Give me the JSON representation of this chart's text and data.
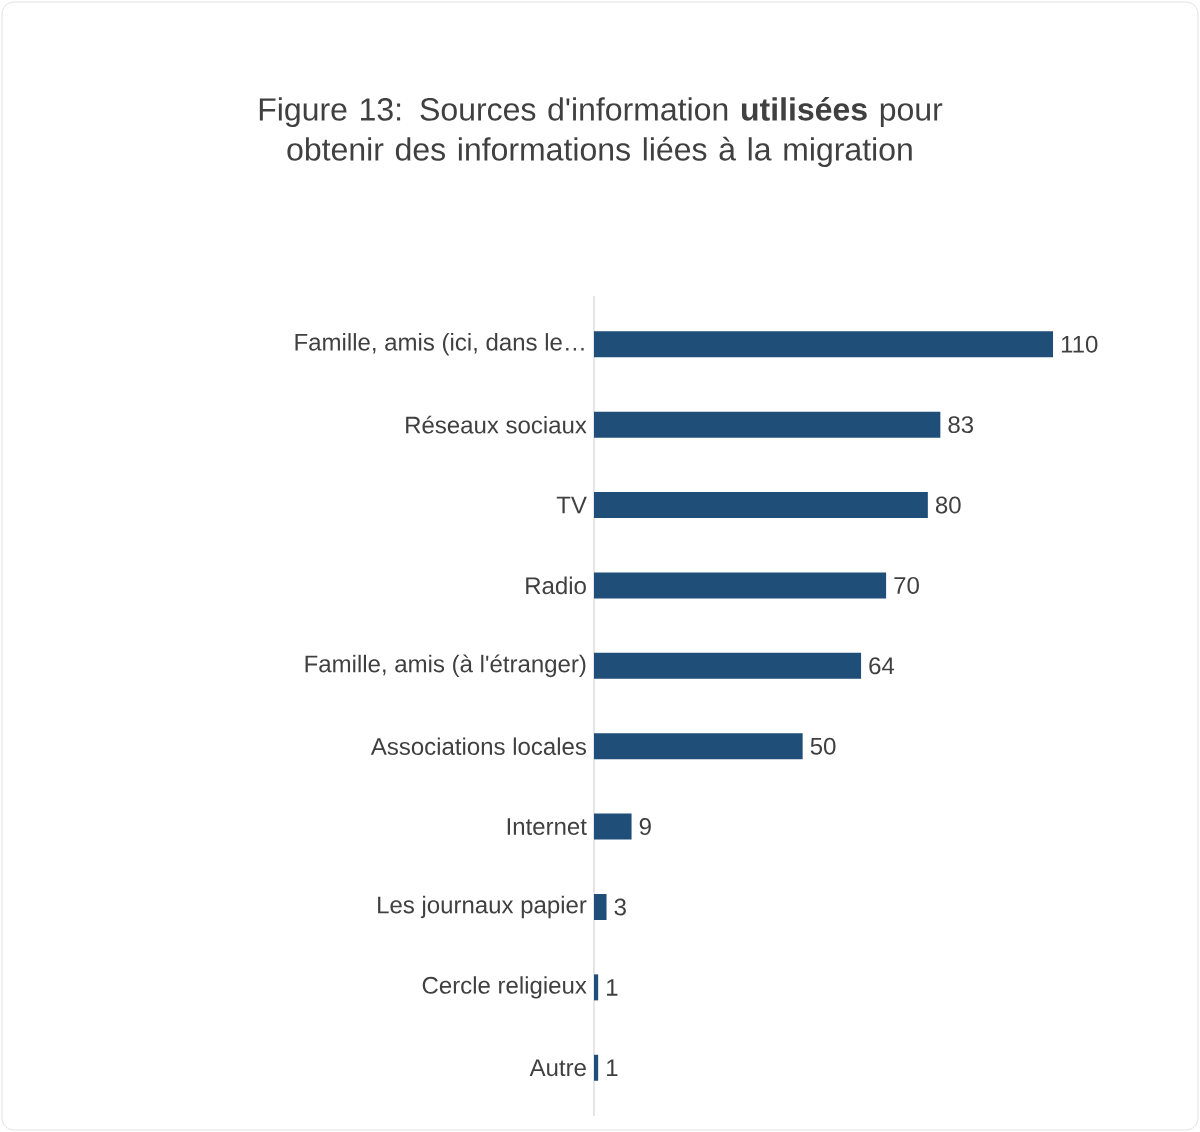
{
  "chart_data": {
    "type": "bar",
    "orientation": "horizontal",
    "title": "Figure 13: Sources d'information **utilisées** pour obtenir des informations liées à la migration",
    "categories": [
      "Famille, amis (ici, dans le…",
      "Réseaux sociaux",
      "TV",
      "Radio",
      "Famille, amis (à l'étranger)",
      "Associations locales",
      "Internet",
      "Les journaux papier",
      "Cercle religieux",
      "Autre"
    ],
    "values": [
      110,
      83,
      80,
      70,
      64,
      50,
      9,
      3,
      1,
      1
    ],
    "color": "#1f4e79",
    "data_labels": true
  }
}
